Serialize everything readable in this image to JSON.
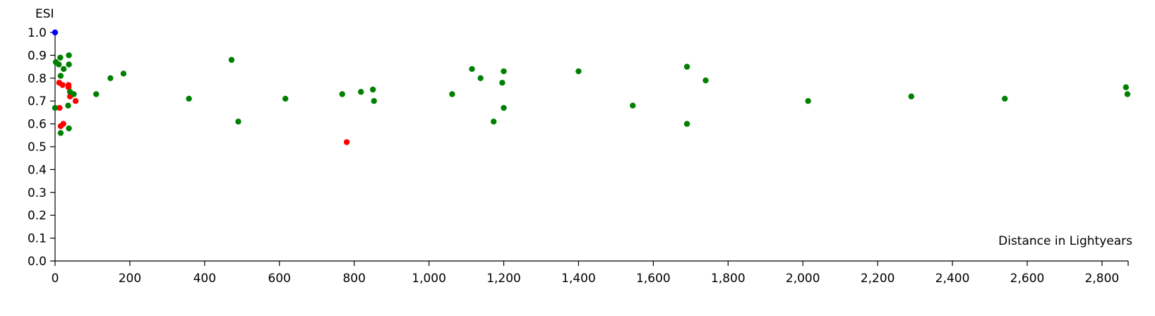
{
  "chart_data": {
    "type": "scatter",
    "title": "",
    "xlabel": "Distance in Lightyears",
    "ylabel": "ESI",
    "xlim": [
      0,
      2870
    ],
    "ylim": [
      0.0,
      1.0
    ],
    "grid": false,
    "x_ticks": [
      0,
      200,
      400,
      600,
      800,
      1000,
      1200,
      1400,
      1600,
      1800,
      2000,
      2200,
      2400,
      2600,
      2800
    ],
    "x_tick_labels": [
      "0",
      "200",
      "400",
      "600",
      "800",
      "1,000",
      "1,200",
      "1,400",
      "1,600",
      "1,800",
      "2,000",
      "2,200",
      "2,400",
      "2,600",
      "2,800"
    ],
    "y_ticks": [
      0.0,
      0.1,
      0.2,
      0.3,
      0.4,
      0.5,
      0.6,
      0.7,
      0.8,
      0.9,
      1.0
    ],
    "y_tick_labels": [
      "0.0",
      "0.1",
      "0.2",
      "0.3",
      "0.4",
      "0.5",
      "0.6",
      "0.7",
      "0.8",
      "0.9",
      "1.0"
    ],
    "series": [
      {
        "color": "#0000ff",
        "points": [
          [
            0,
            1.0
          ]
        ]
      },
      {
        "color": "#ff0000",
        "points": [
          [
            11,
            0.78
          ],
          [
            20,
            0.77
          ],
          [
            36,
            0.77
          ],
          [
            36,
            0.76
          ],
          [
            40,
            0.72
          ],
          [
            55,
            0.7
          ],
          [
            12,
            0.67
          ],
          [
            15,
            0.59
          ],
          [
            22,
            0.6
          ],
          [
            780,
            0.52
          ]
        ]
      },
      {
        "color": "#008000",
        "points": [
          [
            2,
            0.87
          ],
          [
            10,
            0.86
          ],
          [
            14,
            0.89
          ],
          [
            37,
            0.9
          ],
          [
            37,
            0.86
          ],
          [
            23,
            0.84
          ],
          [
            15,
            0.81
          ],
          [
            40,
            0.74
          ],
          [
            50,
            0.73
          ],
          [
            35,
            0.68
          ],
          [
            0,
            0.67
          ],
          [
            37,
            0.58
          ],
          [
            15,
            0.56
          ],
          [
            110,
            0.73
          ],
          [
            148,
            0.8
          ],
          [
            183,
            0.82
          ],
          [
            358,
            0.71
          ],
          [
            472,
            0.88
          ],
          [
            490,
            0.61
          ],
          [
            616,
            0.71
          ],
          [
            768,
            0.73
          ],
          [
            818,
            0.74
          ],
          [
            850,
            0.75
          ],
          [
            853,
            0.7
          ],
          [
            1062,
            0.73
          ],
          [
            1115,
            0.84
          ],
          [
            1138,
            0.8
          ],
          [
            1173,
            0.61
          ],
          [
            1196,
            0.78
          ],
          [
            1200,
            0.83
          ],
          [
            1200,
            0.67
          ],
          [
            1400,
            0.83
          ],
          [
            1545,
            0.68
          ],
          [
            1690,
            0.85
          ],
          [
            1690,
            0.6
          ],
          [
            1740,
            0.79
          ],
          [
            2014,
            0.7
          ],
          [
            2290,
            0.72
          ],
          [
            2540,
            0.71
          ],
          [
            2864,
            0.76
          ],
          [
            2868,
            0.73
          ]
        ]
      }
    ]
  }
}
